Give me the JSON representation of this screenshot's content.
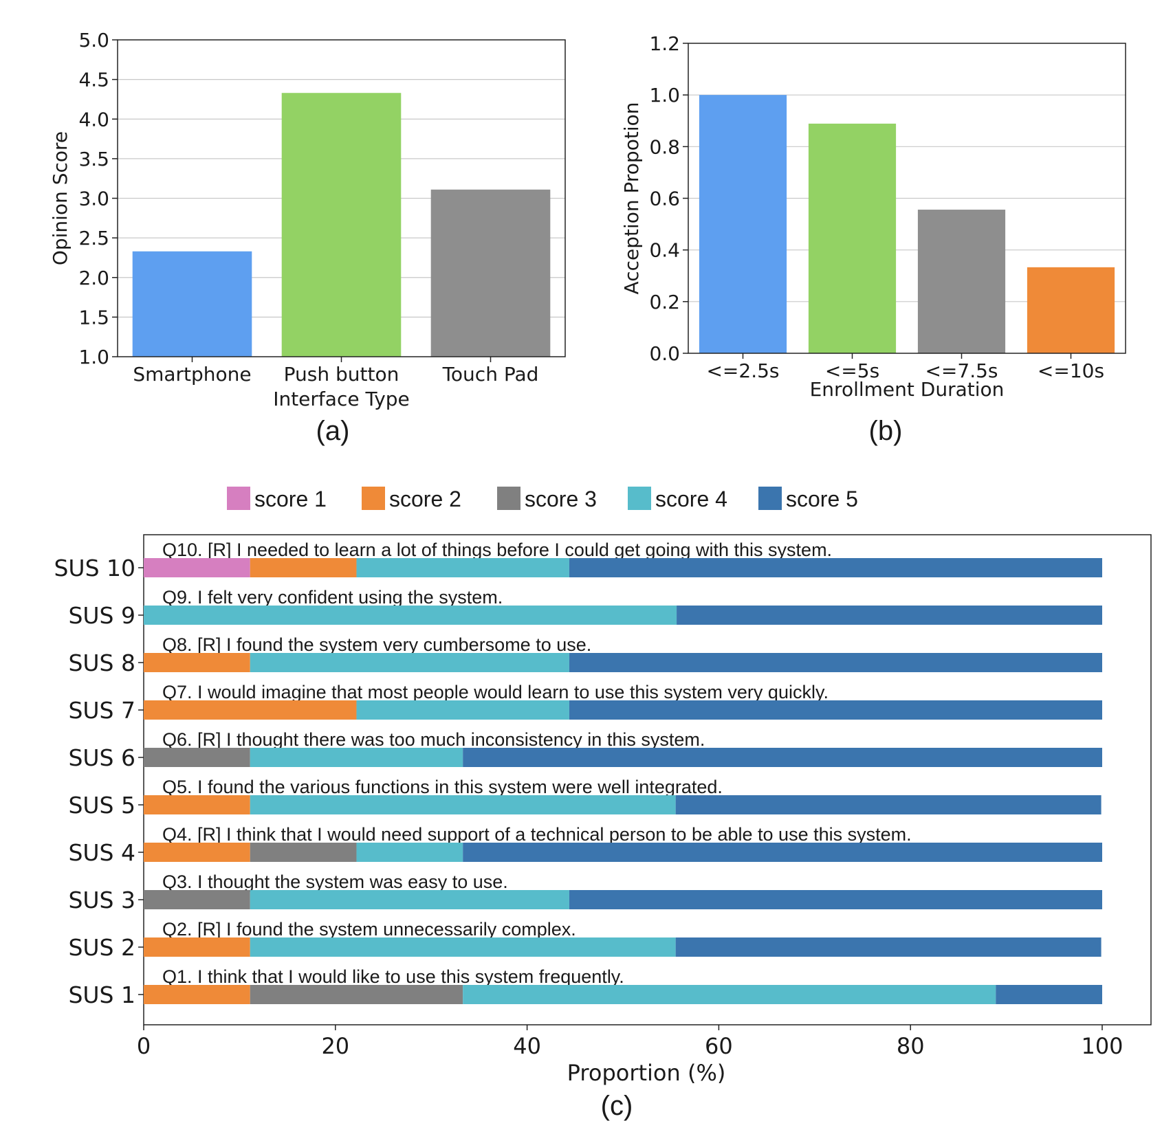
{
  "chart_data": [
    {
      "id": "a",
      "type": "bar",
      "panel_label": "(a)",
      "categories": [
        "Smartphone",
        "Push button",
        "Touch Pad"
      ],
      "values": [
        2.33,
        4.33,
        3.11
      ],
      "colors": [
        "#5e9ff0",
        "#93d264",
        "#8e8e8e"
      ],
      "xlabel": "Interface Type",
      "ylabel": "Opinion Score",
      "ylim": [
        1.0,
        5.0
      ],
      "yticks": [
        "1.0",
        "1.5",
        "2.0",
        "2.5",
        "3.0",
        "3.5",
        "4.0",
        "4.5",
        "5.0"
      ],
      "grid": true
    },
    {
      "id": "b",
      "type": "bar",
      "panel_label": "(b)",
      "categories": [
        "<=2.5s",
        "<=5s",
        "<=7.5s",
        "<=10s"
      ],
      "values": [
        1.0,
        0.889,
        0.556,
        0.333
      ],
      "colors": [
        "#5e9ff0",
        "#93d264",
        "#8e8e8e",
        "#ef8a38"
      ],
      "xlabel": "Enrollment Duration",
      "ylabel": "Acception Propotion",
      "ylim": [
        0.0,
        1.2
      ],
      "yticks": [
        "0.0",
        "0.2",
        "0.4",
        "0.6",
        "0.8",
        "1.0",
        "1.2"
      ],
      "grid": true
    },
    {
      "id": "c",
      "type": "bar",
      "orientation": "horizontal-stacked",
      "panel_label": "(c)",
      "xlabel": "Proportion (%)",
      "xlim": [
        0,
        100
      ],
      "xticks": [
        "0",
        "20",
        "40",
        "60",
        "80",
        "100"
      ],
      "legend": [
        {
          "name": "score 1",
          "color": "#d67fc0"
        },
        {
          "name": "score 2",
          "color": "#ef8a38"
        },
        {
          "name": "score 3",
          "color": "#808080"
        },
        {
          "name": "score 4",
          "color": "#57bccb"
        },
        {
          "name": "score 5",
          "color": "#3b75ae"
        }
      ],
      "legend_position": "top-center",
      "rows": [
        {
          "label": "SUS 10",
          "question": "Q10. [R] I needed to learn a lot of things before I could get going with this system.",
          "values": [
            11.1,
            11.1,
            0,
            22.2,
            55.6
          ]
        },
        {
          "label": "SUS 9",
          "question": "Q9. I felt very confident using the system.",
          "values": [
            0,
            0,
            0,
            55.6,
            44.4
          ]
        },
        {
          "label": "SUS 8",
          "question": "Q8. [R] I found the system very cumbersome to use.",
          "values": [
            0,
            11.1,
            0,
            33.3,
            55.6
          ]
        },
        {
          "label": "SUS 7",
          "question": "Q7. I would imagine that most people would learn to use this system very quickly.",
          "values": [
            0,
            22.2,
            0,
            22.2,
            55.6
          ]
        },
        {
          "label": "SUS 6",
          "question": "Q6. [R] I thought there was too much inconsistency in this system.",
          "values": [
            0,
            0,
            11.1,
            22.2,
            66.7
          ]
        },
        {
          "label": "SUS 5",
          "question": "Q5. I found the various functions in this system were well integrated.",
          "values": [
            0,
            11.1,
            0,
            44.4,
            44.4
          ]
        },
        {
          "label": "SUS 4",
          "question": "Q4. [R] I think that I would need support of a technical person to be able to use this system.",
          "values": [
            0,
            11.1,
            11.1,
            11.1,
            66.7
          ]
        },
        {
          "label": "SUS 3",
          "question": "Q3. I thought the system was easy to use.",
          "values": [
            0,
            0,
            11.1,
            33.3,
            55.6
          ]
        },
        {
          "label": "SUS 2",
          "question": "Q2. [R] I found the system unnecessarily complex.",
          "values": [
            0,
            11.1,
            0,
            44.4,
            44.4
          ]
        },
        {
          "label": "SUS 1",
          "question": "Q1. I think that I would like to use this system frequently.",
          "values": [
            0,
            11.1,
            22.2,
            55.6,
            11.1
          ]
        }
      ]
    }
  ]
}
